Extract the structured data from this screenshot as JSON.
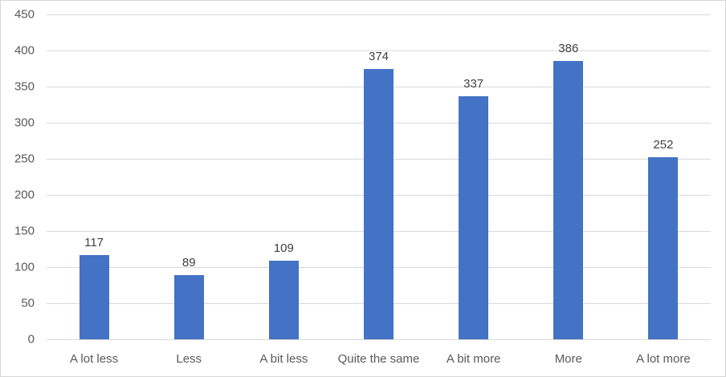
{
  "chart_data": {
    "type": "bar",
    "categories": [
      "A lot less",
      "Less",
      "A bit less",
      "Quite the same",
      "A bit more",
      "More",
      "A lot more"
    ],
    "values": [
      117,
      89,
      109,
      374,
      337,
      386,
      252
    ],
    "title": "",
    "xlabel": "",
    "ylabel": "",
    "ylim": [
      0,
      450
    ],
    "ytick_step": 50,
    "ytick_labels": [
      "0",
      "50",
      "100",
      "150",
      "200",
      "250",
      "300",
      "350",
      "400",
      "450"
    ],
    "grid": true,
    "legend": false,
    "data_labels": true,
    "bar_color": "#4472C4",
    "gridline_color": "#D9D9D9",
    "axis_label_color": "#595959",
    "data_label_color": "#404040",
    "frame_border_color": "#D7D7D7",
    "background_color": "#FFFFFF"
  }
}
